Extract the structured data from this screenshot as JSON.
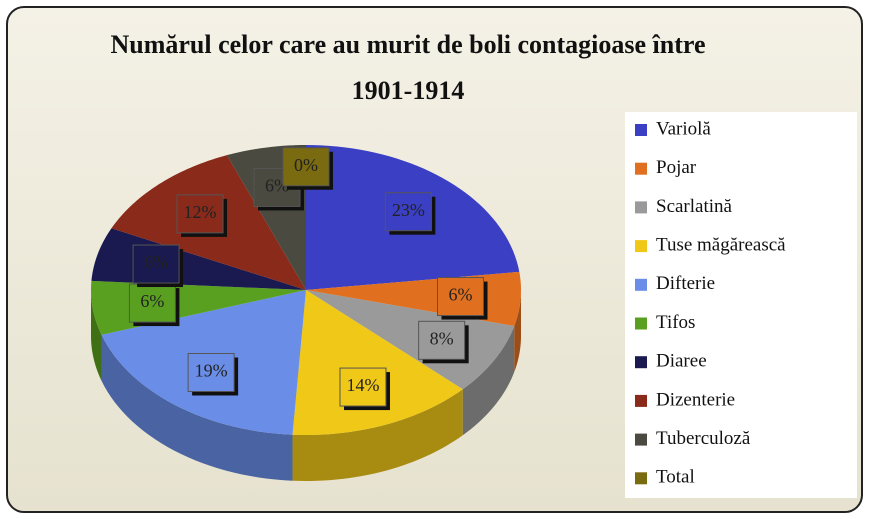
{
  "chart_data": {
    "type": "pie",
    "title": "Numărul celor care au murit de boli contagioase între 1901-1914",
    "categories": [
      "Variolă",
      "Pojar",
      "Scarlatină",
      "Tuse măgărească",
      "Difterie",
      "Tifos",
      "Diaree",
      "Dizenterie",
      "Tuberculoză",
      "Total"
    ],
    "values": [
      23,
      6,
      8,
      14,
      19,
      6,
      6,
      12,
      6,
      0
    ],
    "value_labels": [
      "23%",
      "6%",
      "8%",
      "14%",
      "19%",
      "6%",
      "6%",
      "12%",
      "6%",
      "0%"
    ],
    "colors": [
      "#3b3fc4",
      "#e07020",
      "#9a9a9a",
      "#f0c818",
      "#6a8ee8",
      "#5aa020",
      "#1a1a50",
      "#8a2a1a",
      "#4a4a40",
      "#7a6a10"
    ],
    "legend": "right"
  }
}
